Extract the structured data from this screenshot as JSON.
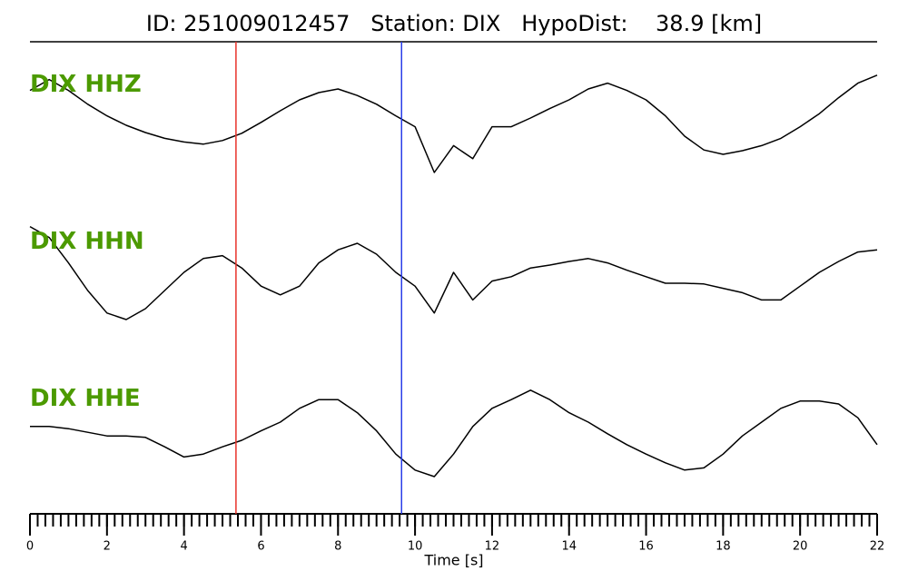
{
  "chart_data": {
    "type": "line",
    "title": "ID: 251009012457   Station: DIX   HypoDist:    38.9 [km]",
    "x_label": "Time [s]",
    "xlim": [
      0,
      22
    ],
    "xticks": [
      0,
      2,
      4,
      6,
      8,
      10,
      12,
      14,
      16,
      18,
      20,
      22
    ],
    "minor_tick_interval": 0.2,
    "ylim": [
      -1,
      1
    ],
    "line_color": "#000000",
    "label_color": "#4c9a00",
    "markers": [
      {
        "x": 5.35,
        "color": "#e8322a"
      },
      {
        "x": 9.65,
        "color": "#2a3ee8"
      }
    ],
    "x": [
      0,
      0.5,
      1,
      1.5,
      2,
      2.5,
      3,
      3.5,
      4,
      4.5,
      5,
      5.5,
      6,
      6.5,
      7,
      7.5,
      8,
      8.5,
      9,
      9.5,
      10,
      10.5,
      11,
      11.5,
      12,
      12.5,
      13,
      13.5,
      14,
      14.5,
      15,
      15.5,
      16,
      16.5,
      17,
      17.5,
      18,
      18.5,
      19,
      19.5,
      20,
      20.5,
      21,
      21.5,
      22
    ],
    "series": [
      {
        "name": "DIX HHZ",
        "values": [
          0.63,
          0.78,
          0.63,
          0.44,
          0.28,
          0.15,
          0.05,
          -0.03,
          -0.08,
          -0.11,
          -0.06,
          0.04,
          0.19,
          0.35,
          0.5,
          0.6,
          0.65,
          0.56,
          0.44,
          0.28,
          0.13,
          -0.5,
          -0.13,
          -0.31,
          0.13,
          0.13,
          0.25,
          0.38,
          0.5,
          0.65,
          0.73,
          0.63,
          0.5,
          0.28,
          0,
          -0.19,
          -0.25,
          -0.2,
          -0.13,
          -0.03,
          0.13,
          0.31,
          0.53,
          0.73,
          0.84
        ]
      },
      {
        "name": "DIX HHN",
        "values": [
          0.88,
          0.73,
          0.38,
          0,
          -0.31,
          -0.4,
          -0.25,
          0,
          0.25,
          0.44,
          0.48,
          0.31,
          0.06,
          -0.06,
          0.06,
          0.38,
          0.56,
          0.65,
          0.5,
          0.25,
          0.06,
          -0.31,
          0.25,
          -0.13,
          0.13,
          0.19,
          0.31,
          0.35,
          0.4,
          0.44,
          0.38,
          0.28,
          0.19,
          0.1,
          0.1,
          0.09,
          0.03,
          -0.03,
          -0.13,
          -0.13,
          0.06,
          0.25,
          0.4,
          0.53,
          0.56
        ]
      },
      {
        "name": "DIX HHE",
        "values": [
          0.19,
          0.19,
          0.16,
          0.11,
          0.06,
          0.06,
          0.04,
          -0.09,
          -0.23,
          -0.19,
          -0.09,
          0,
          0.13,
          0.25,
          0.44,
          0.56,
          0.56,
          0.38,
          0.13,
          -0.19,
          -0.41,
          -0.5,
          -0.19,
          0.19,
          0.44,
          0.56,
          0.69,
          0.56,
          0.38,
          0.25,
          0.09,
          -0.06,
          -0.19,
          -0.31,
          -0.41,
          -0.38,
          -0.19,
          0.06,
          0.25,
          0.44,
          0.54,
          0.54,
          0.5,
          0.31,
          -0.06
        ]
      }
    ]
  }
}
